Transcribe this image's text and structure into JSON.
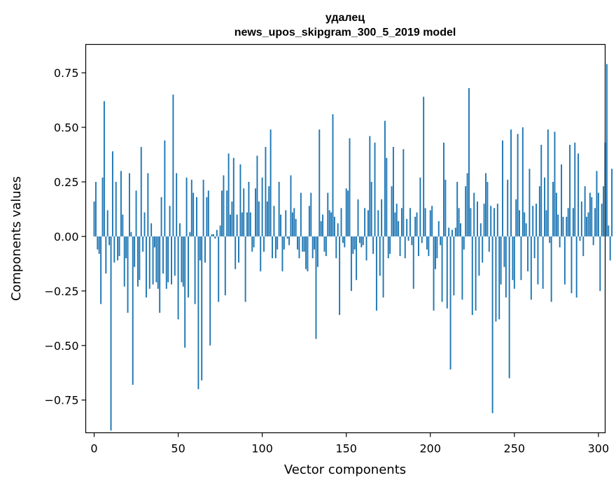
{
  "chart_data": {
    "type": "bar",
    "title": "удалец",
    "subtitle": "news_upos_skipgram_300_5_2019 model",
    "xlabel": "Vector components",
    "ylabel": "Components values",
    "xlim": [
      -5,
      304
    ],
    "ylim": [
      -0.9,
      0.88
    ],
    "xticks": [
      0,
      50,
      100,
      150,
      200,
      250,
      300
    ],
    "yticks": [
      0.75,
      0.5,
      0.25,
      0.0,
      -0.25,
      -0.5,
      -0.75
    ],
    "ytick_labels": [
      "0.75",
      "0.50",
      "0.25",
      "0.00",
      "−0.25",
      "−0.50",
      "−0.75"
    ],
    "grid": false,
    "bar_color": "#1f77b4",
    "values": [
      0.16,
      0.25,
      -0.06,
      -0.08,
      -0.31,
      0.27,
      0.62,
      -0.17,
      0.12,
      -0.04,
      -0.89,
      0.39,
      -0.12,
      0.25,
      -0.11,
      -0.09,
      0.3,
      0.1,
      -0.23,
      -0.1,
      -0.35,
      0.29,
      0.02,
      -0.68,
      -0.14,
      0.21,
      -0.23,
      -0.2,
      0.41,
      -0.07,
      0.11,
      -0.28,
      0.29,
      -0.24,
      0.06,
      -0.22,
      -0.05,
      -0.21,
      -0.24,
      -0.35,
      0.18,
      -0.17,
      0.44,
      -0.24,
      -0.21,
      0.14,
      -0.22,
      0.65,
      -0.18,
      0.29,
      -0.38,
      0.06,
      -0.21,
      -0.23,
      -0.51,
      0.27,
      -0.28,
      0.02,
      0.26,
      0.2,
      -0.31,
      0.18,
      -0.7,
      -0.11,
      -0.66,
      0.26,
      -0.12,
      0.18,
      0.21,
      -0.5,
      0.01,
      0.01,
      -0.01,
      0.03,
      -0.3,
      0.05,
      0.21,
      0.28,
      -0.27,
      0.21,
      0.38,
      0.1,
      0.16,
      0.36,
      -0.15,
      0.1,
      -0.12,
      0.33,
      0.11,
      0.22,
      -0.3,
      0.11,
      0.25,
      0.11,
      -0.07,
      -0.05,
      0.22,
      0.37,
      0.16,
      -0.16,
      0.27,
      -0.07,
      0.41,
      0.16,
      0.23,
      0.49,
      -0.1,
      0.14,
      -0.1,
      -0.06,
      0.25,
      0.1,
      -0.16,
      -0.06,
      0.12,
      -0.01,
      -0.04,
      0.28,
      0.11,
      0.13,
      0.08,
      -0.06,
      -0.1,
      0.2,
      -0.07,
      -0.07,
      -0.15,
      -0.16,
      0.14,
      0.2,
      -0.1,
      -0.06,
      -0.47,
      -0.14,
      0.49,
      0.07,
      0.1,
      -0.07,
      -0.09,
      0.2,
      0.12,
      0.11,
      0.56,
      0.09,
      -0.1,
      0.06,
      -0.36,
      0.13,
      -0.03,
      -0.05,
      0.22,
      0.21,
      0.45,
      -0.25,
      -0.08,
      -0.06,
      -0.2,
      0.17,
      -0.03,
      -0.05,
      -0.04,
      0.13,
      -0.11,
      0.12,
      0.46,
      0.25,
      -0.08,
      0.43,
      -0.34,
      0.12,
      -0.18,
      0.17,
      -0.28,
      0.53,
      0.36,
      -0.1,
      -0.08,
      0.23,
      0.41,
      0.11,
      0.15,
      0.07,
      -0.09,
      0.13,
      0.4,
      -0.1,
      0.08,
      -0.02,
      0.13,
      -0.04,
      -0.24,
      0.09,
      0.11,
      -0.09,
      0.27,
      -0.03,
      0.64,
      0.13,
      -0.06,
      -0.09,
      0.12,
      0.14,
      -0.34,
      -0.15,
      -0.1,
      0.07,
      -0.04,
      -0.3,
      0.43,
      0.26,
      -0.33,
      0.04,
      -0.61,
      0.03,
      -0.27,
      0.04,
      0.25,
      0.13,
      0.06,
      -0.29,
      -0.06,
      0.23,
      0.29,
      0.68,
      0.13,
      -0.36,
      0.2,
      -0.34,
      0.16,
      -0.18,
      0.06,
      -0.12,
      0.15,
      0.29,
      0.25,
      -0.07,
      0.14,
      -0.81,
      0.13,
      -0.39,
      0.15,
      -0.38,
      -0.22,
      0.44,
      -0.14,
      -0.28,
      0.26,
      -0.65,
      0.49,
      -0.2,
      -0.24,
      0.17,
      0.47,
      0.12,
      -0.2,
      0.5,
      0.11,
      0.06,
      -0.16,
      0.31,
      -0.29,
      0.14,
      -0.1,
      0.15,
      -0.22,
      0.23,
      0.42,
      -0.24,
      0.27,
      0.12,
      0.49,
      -0.03,
      -0.3,
      0.25,
      0.48,
      0.2,
      0.1,
      -0.05,
      0.33,
      0.09,
      -0.22,
      0.09,
      0.13,
      0.42,
      -0.26,
      0.13,
      0.43,
      -0.28,
      0.38,
      -0.02,
      0.16,
      -0.09,
      0.23,
      0.09,
      0.11,
      0.2,
      0.18,
      -0.04,
      0.13,
      0.3,
      0.2,
      -0.25,
      0.15,
      0.23,
      0.43,
      0.79,
      0.05,
      -0.11,
      0.31
    ]
  }
}
